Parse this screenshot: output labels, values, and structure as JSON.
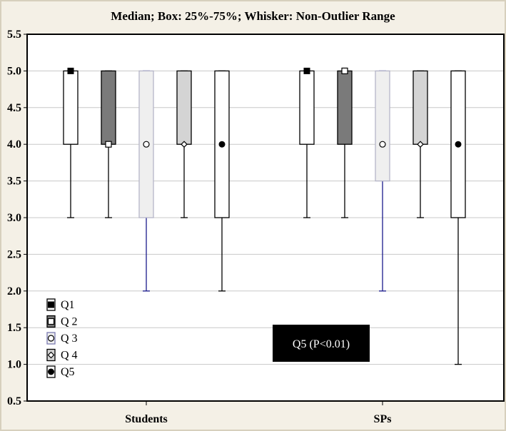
{
  "chart_data": {
    "type": "box",
    "title": "Median; Box: 25%-75%; Whisker: Non-Outlier Range",
    "xlabel": "",
    "ylabel": "",
    "ylim": [
      0.5,
      5.5
    ],
    "yticks": [
      "0.5",
      "1.0",
      "1.5",
      "2.0",
      "2.5",
      "3.0",
      "3.5",
      "4.0",
      "4.5",
      "5.0",
      "5.5"
    ],
    "grid": true,
    "legend_position": "bottom-left",
    "categories": [
      "Students",
      "SPs"
    ],
    "series": [
      {
        "name": "Q1",
        "fill": "#ffffff",
        "marker": "filled-square",
        "whisker_color": "#000000",
        "values": [
          {
            "median": 5.0,
            "q1": 4.0,
            "q3": 5.0,
            "min": 3.0,
            "max": 5.0
          },
          {
            "median": 5.0,
            "q1": 4.0,
            "q3": 5.0,
            "min": 3.0,
            "max": 5.0
          }
        ]
      },
      {
        "name": "Q 2",
        "fill": "#7a7a7a",
        "marker": "open-square",
        "whisker_color": "#000000",
        "values": [
          {
            "median": 4.0,
            "q1": 4.0,
            "q3": 5.0,
            "min": 3.0,
            "max": 5.0
          },
          {
            "median": 5.0,
            "q1": 4.0,
            "q3": 5.0,
            "min": 3.0,
            "max": 5.0
          }
        ]
      },
      {
        "name": "Q 3",
        "fill": "#efefef",
        "marker": "open-circle",
        "whisker_color": "#1a1a8c",
        "values": [
          {
            "median": 4.0,
            "q1": 3.0,
            "q3": 5.0,
            "min": 2.0,
            "max": 5.0
          },
          {
            "median": 4.0,
            "q1": 3.5,
            "q3": 5.0,
            "min": 2.0,
            "max": 5.0
          }
        ]
      },
      {
        "name": "Q 4",
        "fill": "#d4d4d4",
        "marker": "open-diamond",
        "whisker_color": "#000000",
        "values": [
          {
            "median": 4.0,
            "q1": 4.0,
            "q3": 5.0,
            "min": 3.0,
            "max": 5.0
          },
          {
            "median": 4.0,
            "q1": 4.0,
            "q3": 5.0,
            "min": 3.0,
            "max": 5.0
          }
        ]
      },
      {
        "name": "Q5",
        "fill": "#ffffff",
        "marker": "filled-circle",
        "whisker_color": "#000000",
        "values": [
          {
            "median": 4.0,
            "q1": 3.0,
            "q3": 5.0,
            "min": 2.0,
            "max": 5.0
          },
          {
            "median": 4.0,
            "q1": 3.0,
            "q3": 5.0,
            "min": 1.0,
            "max": 5.0
          }
        ]
      }
    ],
    "annotation": {
      "text": "Q5 (P<0.01)",
      "background": "#000000",
      "color": "#ffffff"
    }
  },
  "colors": {
    "background": "#f4f0e6",
    "plot_background": "#ffffff",
    "grid": "#c8c8c8"
  }
}
